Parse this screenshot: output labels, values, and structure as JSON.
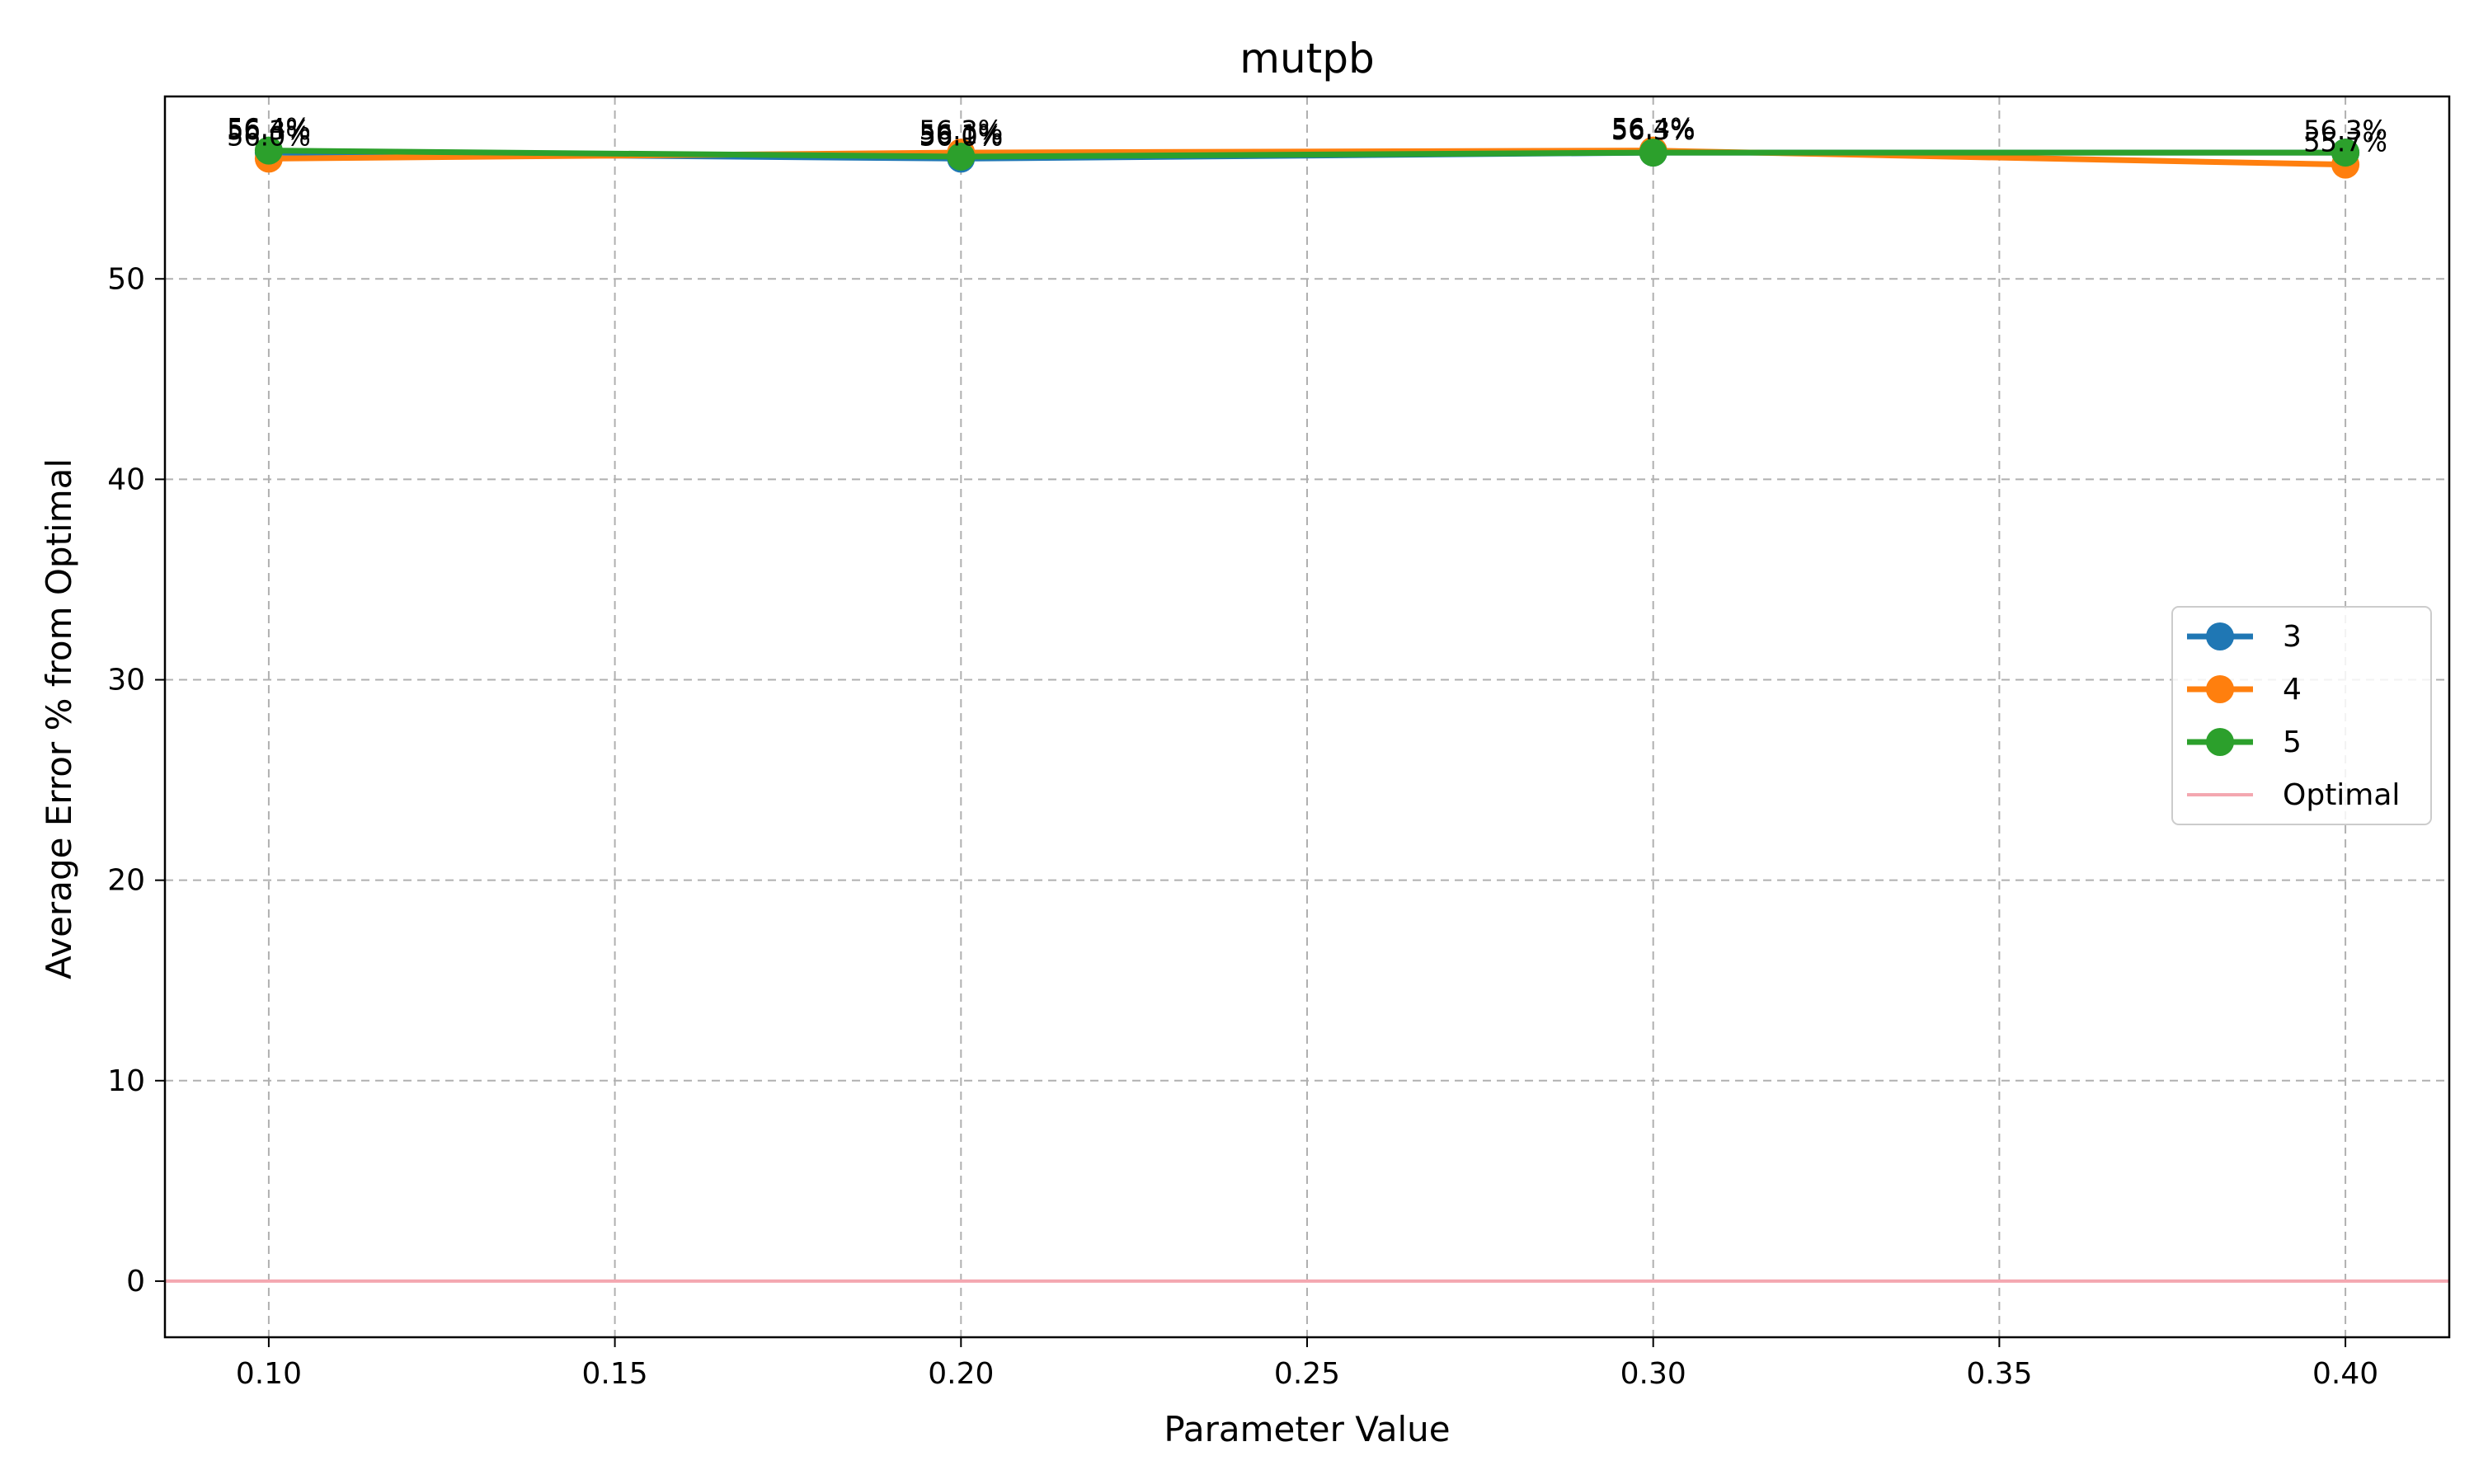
{
  "chart_data": {
    "type": "line",
    "title": "mutpb",
    "xlabel": "Parameter Value",
    "ylabel": "Average Error % from Optimal",
    "x": [
      0.1,
      0.2,
      0.3,
      0.4
    ],
    "xlim": [
      0.085,
      0.415
    ],
    "ylim": [
      -2.8,
      59.1
    ],
    "xticks": [
      0.1,
      0.15,
      0.2,
      0.25,
      0.3,
      0.35,
      0.4
    ],
    "xtick_labels": [
      "0.10",
      "0.15",
      "0.20",
      "0.25",
      "0.30",
      "0.35",
      "0.40"
    ],
    "yticks": [
      0,
      10,
      20,
      30,
      40,
      50
    ],
    "ytick_labels": [
      "0",
      "10",
      "20",
      "30",
      "40",
      "50"
    ],
    "grid": true,
    "legend_position": "center-right",
    "series": [
      {
        "name": "3",
        "color": "#1f77b4",
        "values": [
          56.3,
          56.0,
          56.3,
          56.3
        ],
        "labels": [
          "56.3%",
          "56.0%",
          "56.3%",
          "56.3%"
        ]
      },
      {
        "name": "4",
        "color": "#ff7f0e",
        "values": [
          56.0,
          56.3,
          56.4,
          55.7
        ],
        "labels": [
          "56.0%",
          "56.3%",
          "56.4%",
          "55.7%"
        ]
      },
      {
        "name": "5",
        "color": "#2ca02c",
        "values": [
          56.4,
          56.1,
          56.3,
          56.3
        ],
        "labels": [
          "56.4%",
          "56.1%",
          "56.3%",
          "56.3%"
        ]
      }
    ],
    "reference_line": {
      "name": "Optimal",
      "value": 0,
      "color": "#f4a7b0"
    }
  }
}
